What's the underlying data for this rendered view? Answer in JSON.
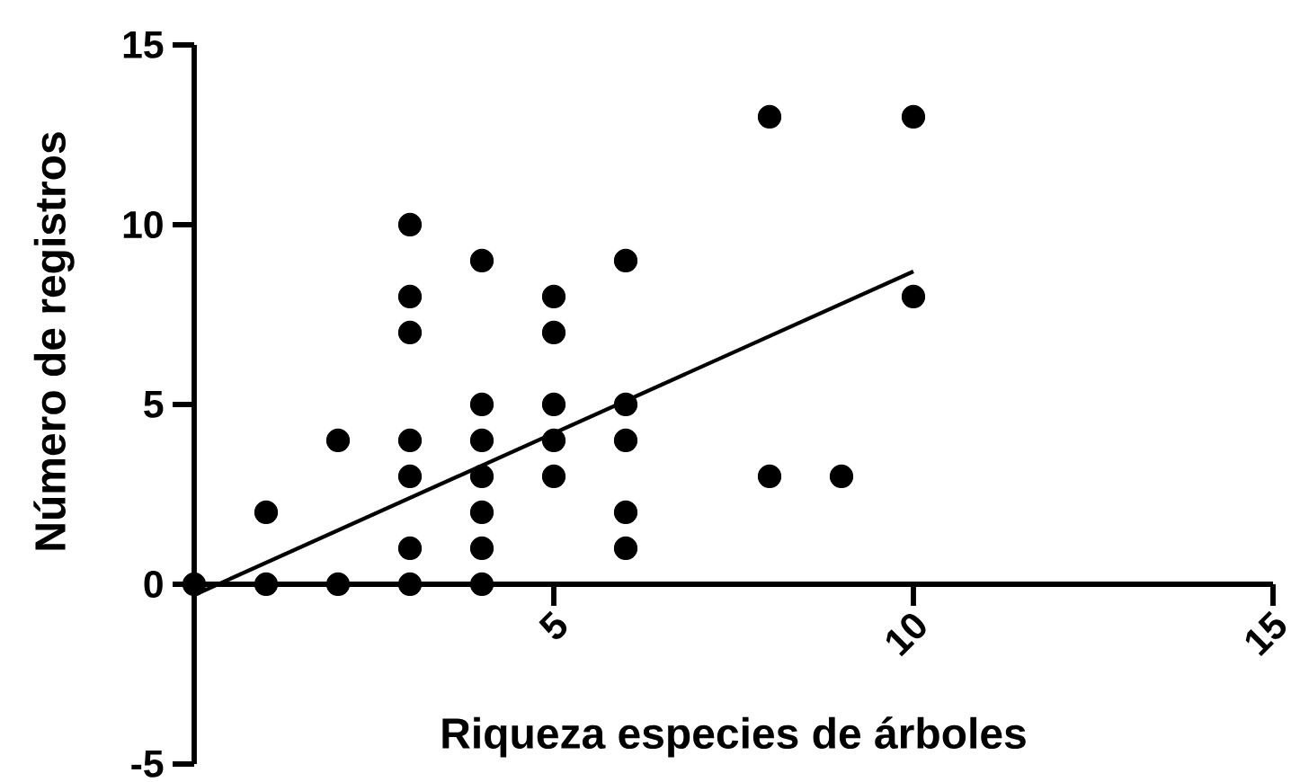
{
  "chart_data": {
    "type": "scatter",
    "xlabel": "Riqueza especies de árboles",
    "ylabel": "Número de registros",
    "xlim": [
      0,
      15
    ],
    "ylim": [
      -5,
      15
    ],
    "xticks": [
      5,
      10,
      15
    ],
    "yticks": [
      -5,
      0,
      5,
      10,
      15
    ],
    "marker": "circle",
    "series": [
      {
        "color": "#000000",
        "x": [
          0,
          1,
          1,
          2,
          2,
          3,
          3,
          3,
          3,
          3,
          3,
          3,
          4,
          4,
          4,
          4,
          4,
          4,
          4,
          5,
          5,
          5,
          5,
          5,
          6,
          6,
          6,
          6,
          6,
          8,
          8,
          9,
          10,
          10
        ],
        "values": [
          0,
          2,
          0,
          4,
          0,
          10,
          8,
          7,
          4,
          3,
          1,
          0,
          9,
          5,
          4,
          3,
          2,
          1,
          0,
          8,
          7,
          5,
          4,
          3,
          9,
          5,
          4,
          2,
          1,
          13,
          3,
          3,
          13,
          8
        ]
      },
      {
        "type": "line",
        "marker": "none",
        "color": "#000000",
        "x": [
          0,
          10
        ],
        "values": [
          -0.3,
          8.7
        ]
      }
    ]
  }
}
